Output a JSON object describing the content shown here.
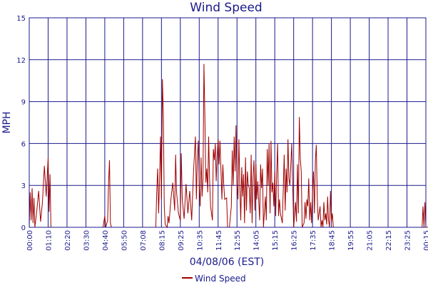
{
  "chart_data": {
    "type": "line",
    "title": "Wind Speed",
    "xlabel": "04/08/06 (EST)",
    "ylabel": "MPH",
    "ylim": [
      0,
      15
    ],
    "yticks": [
      "0",
      "3",
      "6",
      "9",
      "12",
      "15"
    ],
    "grid": true,
    "legend": "bottom-center",
    "x_ticks": [
      "00:00",
      "01:10",
      "02:20",
      "03:30",
      "04:40",
      "05:50",
      "07:08",
      "08:15",
      "09:25",
      "10:35",
      "11:45",
      "12:55",
      "14:05",
      "15:15",
      "16:25",
      "17:35",
      "18:45",
      "19:55",
      "21:05",
      "22:15",
      "23:25",
      "00:15"
    ],
    "colors": {
      "series": "#a00000",
      "grid": "#1a1a8c",
      "text": "#1a1a8c"
    },
    "series": [
      {
        "name": "Wind Speed",
        "x_tick_positions": [
          0,
          1,
          2,
          3,
          4,
          5,
          6,
          7,
          8,
          9,
          10,
          11,
          12,
          13,
          14,
          15,
          16,
          17,
          18,
          19,
          20,
          21
        ],
        "points": [
          [
            0.0,
            0
          ],
          [
            0.05,
            2.5
          ],
          [
            0.1,
            0.5
          ],
          [
            0.15,
            2.8
          ],
          [
            0.2,
            0.3
          ],
          [
            0.25,
            2.1
          ],
          [
            0.3,
            0
          ],
          [
            0.4,
            1.2
          ],
          [
            0.5,
            2.6
          ],
          [
            0.6,
            0.4
          ],
          [
            0.7,
            1.8
          ],
          [
            0.8,
            4.4
          ],
          [
            0.9,
            2.2
          ],
          [
            1.0,
            5.0
          ],
          [
            1.05,
            1.1
          ],
          [
            1.1,
            3.8
          ],
          [
            1.15,
            0
          ],
          [
            1.3,
            0
          ],
          [
            2.0,
            0
          ],
          [
            3.0,
            0
          ],
          [
            3.9,
            0
          ],
          [
            4.0,
            0.8
          ],
          [
            4.05,
            0
          ],
          [
            4.15,
            0.5
          ],
          [
            4.2,
            3.2
          ],
          [
            4.25,
            4.8
          ],
          [
            4.3,
            0.3
          ],
          [
            4.35,
            0
          ],
          [
            5.0,
            0
          ],
          [
            6.0,
            0
          ],
          [
            6.7,
            0
          ],
          [
            6.75,
            2.5
          ],
          [
            6.8,
            4.2
          ],
          [
            6.85,
            1.0
          ],
          [
            6.9,
            3.5
          ],
          [
            6.95,
            6.5
          ],
          [
            7.0,
            2.0
          ],
          [
            7.05,
            10.6
          ],
          [
            7.1,
            8.0
          ],
          [
            7.15,
            1.5
          ],
          [
            7.2,
            0.2
          ],
          [
            7.3,
            0
          ],
          [
            7.35,
            0.8
          ],
          [
            7.4,
            0.3
          ],
          [
            7.5,
            2.0
          ],
          [
            7.6,
            3.2
          ],
          [
            7.7,
            1.2
          ],
          [
            7.75,
            5.2
          ],
          [
            7.8,
            2.5
          ],
          [
            7.9,
            1.0
          ],
          [
            8.0,
            0.5
          ],
          [
            8.05,
            5.3
          ],
          [
            8.1,
            2.0
          ],
          [
            8.2,
            0.6
          ],
          [
            8.3,
            3.1
          ],
          [
            8.4,
            1.0
          ],
          [
            8.5,
            2.6
          ],
          [
            8.6,
            0.5
          ],
          [
            8.7,
            4.0
          ],
          [
            8.8,
            6.5
          ],
          [
            8.85,
            2.0
          ],
          [
            8.9,
            4.8
          ],
          [
            8.95,
            6.2
          ],
          [
            9.0,
            3.0
          ],
          [
            9.05,
            1.5
          ],
          [
            9.1,
            5.0
          ],
          [
            9.15,
            2.2
          ],
          [
            9.2,
            3.5
          ],
          [
            9.25,
            11.7
          ],
          [
            9.3,
            8.0
          ],
          [
            9.35,
            3.2
          ],
          [
            9.4,
            4.2
          ],
          [
            9.45,
            2.5
          ],
          [
            9.5,
            6.5
          ],
          [
            9.55,
            3.5
          ],
          [
            9.6,
            1.5
          ],
          [
            9.7,
            0.5
          ],
          [
            9.75,
            5.6
          ],
          [
            9.8,
            4.8
          ],
          [
            9.85,
            6.0
          ],
          [
            9.9,
            3.3
          ],
          [
            9.95,
            5.2
          ],
          [
            10.0,
            6.3
          ],
          [
            10.05,
            4.5
          ],
          [
            10.1,
            6.2
          ],
          [
            10.2,
            2.0
          ],
          [
            10.25,
            4.5
          ],
          [
            10.3,
            3.0
          ],
          [
            10.35,
            2.0
          ],
          [
            10.45,
            2.1
          ],
          [
            10.5,
            0
          ],
          [
            10.6,
            0
          ],
          [
            10.7,
            1.5
          ],
          [
            10.75,
            5.5
          ],
          [
            10.8,
            3.0
          ],
          [
            10.85,
            6.5
          ],
          [
            10.9,
            4.0
          ],
          [
            10.95,
            7.3
          ],
          [
            11.0,
            3.2
          ],
          [
            11.05,
            2.0
          ],
          [
            11.1,
            6.3
          ],
          [
            11.15,
            3.0
          ],
          [
            11.2,
            0.5
          ],
          [
            11.25,
            4.3
          ],
          [
            11.3,
            2.2
          ],
          [
            11.35,
            3.8
          ],
          [
            11.4,
            0.3
          ],
          [
            11.45,
            5.0
          ],
          [
            11.5,
            1.2
          ],
          [
            11.55,
            4.0
          ],
          [
            11.6,
            3.0
          ],
          [
            11.65,
            2.8
          ],
          [
            11.7,
            1.0
          ],
          [
            11.75,
            5.2
          ],
          [
            11.8,
            0.3
          ],
          [
            11.85,
            3.6
          ],
          [
            11.9,
            4.8
          ],
          [
            11.95,
            1.2
          ],
          [
            12.0,
            4.5
          ],
          [
            12.05,
            2.0
          ],
          [
            12.1,
            3.3
          ],
          [
            12.2,
            0.5
          ],
          [
            12.25,
            4.5
          ],
          [
            12.3,
            2.8
          ],
          [
            12.35,
            4.2
          ],
          [
            12.4,
            0
          ],
          [
            12.5,
            2.2
          ],
          [
            12.55,
            0.5
          ],
          [
            12.6,
            5.6
          ],
          [
            12.65,
            3.0
          ],
          [
            12.7,
            6.0
          ],
          [
            12.75,
            1.0
          ],
          [
            12.8,
            6.2
          ],
          [
            12.85,
            2.5
          ],
          [
            12.9,
            3.2
          ],
          [
            12.95,
            1.5
          ],
          [
            13.0,
            4.0
          ],
          [
            13.05,
            0.8
          ],
          [
            13.1,
            3.8
          ],
          [
            13.15,
            6.0
          ],
          [
            13.2,
            0.8
          ],
          [
            13.25,
            2.0
          ],
          [
            13.3,
            1.0
          ],
          [
            13.4,
            0.3
          ],
          [
            13.5,
            5.2
          ],
          [
            13.55,
            1.2
          ],
          [
            13.6,
            4.2
          ],
          [
            13.65,
            2.5
          ],
          [
            13.7,
            6.3
          ],
          [
            13.75,
            3.5
          ],
          [
            13.8,
            3.0
          ],
          [
            13.9,
            6.0
          ],
          [
            14.0,
            0
          ],
          [
            14.1,
            1.8
          ],
          [
            14.15,
            0.4
          ],
          [
            14.2,
            4.5
          ],
          [
            14.25,
            1.0
          ],
          [
            14.3,
            7.9
          ],
          [
            14.35,
            5.0
          ],
          [
            14.4,
            4.0
          ],
          [
            14.45,
            0
          ],
          [
            14.55,
            0.3
          ],
          [
            14.6,
            1.8
          ],
          [
            14.65,
            0.6
          ],
          [
            14.7,
            2.0
          ],
          [
            14.75,
            1.5
          ],
          [
            14.8,
            3.5
          ],
          [
            14.85,
            0.5
          ],
          [
            14.9,
            1.8
          ],
          [
            14.95,
            0.3
          ],
          [
            15.0,
            2.5
          ],
          [
            15.05,
            4.0
          ],
          [
            15.1,
            1.0
          ],
          [
            15.15,
            4.8
          ],
          [
            15.2,
            5.9
          ],
          [
            15.25,
            2.0
          ],
          [
            15.3,
            0.5
          ],
          [
            15.4,
            1.5
          ],
          [
            15.45,
            0
          ],
          [
            15.5,
            0.5
          ],
          [
            15.55,
            0
          ],
          [
            15.6,
            1.8
          ],
          [
            15.65,
            0.5
          ],
          [
            15.7,
            1.0
          ],
          [
            15.75,
            0.2
          ],
          [
            15.8,
            2.2
          ],
          [
            15.85,
            0.5
          ],
          [
            15.9,
            0
          ],
          [
            15.95,
            2.6
          ],
          [
            16.0,
            0.4
          ],
          [
            16.05,
            1.0
          ],
          [
            16.1,
            0
          ],
          [
            16.15,
            0
          ],
          [
            17.0,
            0
          ],
          [
            18.0,
            0
          ],
          [
            19.0,
            0
          ],
          [
            20.0,
            0
          ],
          [
            20.8,
            0
          ],
          [
            20.85,
            1.5
          ],
          [
            20.9,
            0
          ],
          [
            20.95,
            1.8
          ],
          [
            21.0,
            0
          ],
          [
            21.5,
            0
          ],
          [
            21.6,
            0
          ],
          [
            21.7,
            1.2
          ],
          [
            21.75,
            0
          ]
        ]
      }
    ]
  }
}
